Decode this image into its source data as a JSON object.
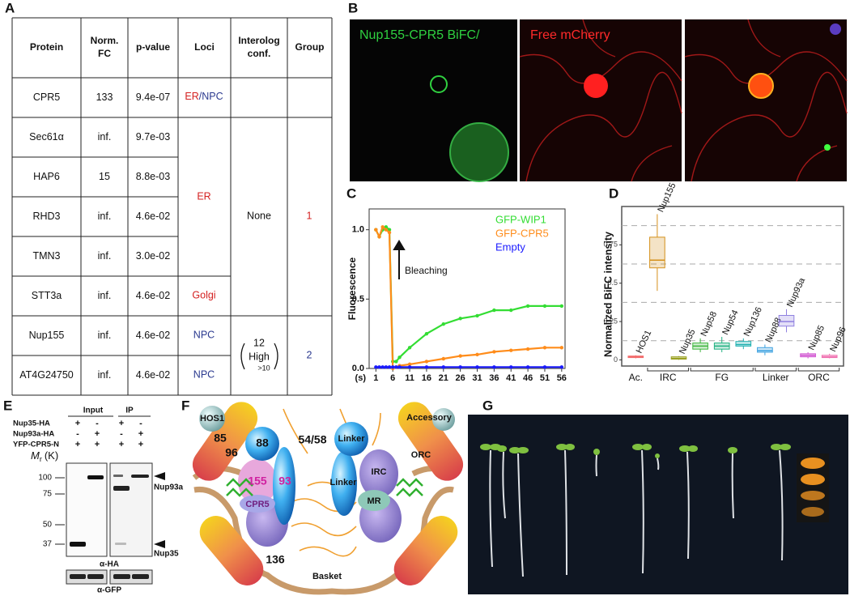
{
  "panel_labels": [
    "A",
    "B",
    "C",
    "D",
    "E",
    "F",
    "G"
  ],
  "table": {
    "header": [
      [
        "Protein"
      ],
      [
        "Norm.",
        "FC"
      ],
      [
        "p-value"
      ],
      [
        "Loci"
      ],
      [
        "Interolog",
        "conf."
      ],
      [
        "Group"
      ]
    ],
    "rows": [
      [
        "CPR5",
        "133",
        "9.4e-07"
      ],
      [
        "Sec61α",
        "inf.",
        "9.7e-03"
      ],
      [
        "HAP6",
        "15",
        "8.8e-03"
      ],
      [
        "RHD3",
        "inf.",
        "4.6e-02"
      ],
      [
        "TMN3",
        "inf.",
        "3.0e-02"
      ],
      [
        "STT3a",
        "inf.",
        "4.6e-02"
      ],
      [
        "Nup155",
        "inf.",
        "4.6e-02"
      ],
      [
        "AT4G24750",
        "inf.",
        "4.6e-02"
      ]
    ],
    "loci": {
      "cpr5": [
        "ER",
        "/NPC"
      ],
      "er": "ER",
      "golgi": "Golgi",
      "nup155": "NPC",
      "at4g24750": "NPC"
    },
    "interolog": {
      "group1": "None",
      "group2_count": "12",
      "group2_level": "High",
      "group2_threshold": ">10"
    },
    "group": [
      "1",
      "2"
    ]
  },
  "microscopy": {
    "label_bifc": "Nup155-CPR5 BiFC/",
    "label_mcherry": "Free mCherry"
  },
  "chart_data": [
    {
      "type": "line",
      "ylabel": "Fluorescence",
      "x_unit": "(s)",
      "annotation": "Bleaching",
      "x": [
        1,
        2,
        3,
        4,
        5,
        6,
        7,
        8,
        11,
        16,
        21,
        26,
        31,
        36,
        41,
        46,
        51,
        56
      ],
      "xlim": [
        -1,
        57
      ],
      "ylim": [
        0,
        1.15
      ],
      "xticks": [
        1,
        6,
        11,
        16,
        21,
        26,
        31,
        36,
        41,
        46,
        51,
        56
      ],
      "yticks": [
        {
          "value": 0,
          "label": "0.0"
        },
        {
          "value": 0.5,
          "label": "0.5"
        },
        {
          "value": 1,
          "label": "1.0"
        }
      ],
      "series": [
        {
          "name": "GFP-WIP1",
          "color": "#33dd33",
          "values": [
            1.0,
            0.95,
            1.0,
            1.02,
            1.0,
            0.05,
            0.05,
            0.08,
            0.15,
            0.25,
            0.32,
            0.36,
            0.38,
            0.42,
            0.42,
            0.45,
            0.45,
            0.45
          ]
        },
        {
          "name": "GFP-CPR5",
          "color": "#ff8c1a",
          "values": [
            1.0,
            0.95,
            1.02,
            1.0,
            0.98,
            0.0,
            0.01,
            0.02,
            0.03,
            0.05,
            0.07,
            0.09,
            0.1,
            0.12,
            0.13,
            0.14,
            0.15,
            0.15
          ]
        },
        {
          "name": "Empty",
          "color": "#1a1aff",
          "values": [
            0.01,
            0.01,
            0.01,
            0.01,
            0.01,
            0.01,
            0.01,
            0.01,
            0.01,
            0.01,
            0.01,
            0.01,
            0.01,
            0.01,
            0.01,
            0.01,
            0.01,
            0.01
          ]
        }
      ]
    },
    {
      "type": "box",
      "ylabel": "Normalized BiFC intensity",
      "categories": [
        "HOS1",
        "Nup155",
        "Nup35",
        "Nup58",
        "Nup54",
        "Nup136",
        "Nup88",
        "Nup93a",
        "Nup85",
        "Nup96"
      ],
      "colors": [
        "#f26b6b",
        "#d4901a",
        "#9aa020",
        "#3cb43c",
        "#20b080",
        "#20b0b0",
        "#3aa0e0",
        "#9080e0",
        "#d050d0",
        "#f070b0"
      ],
      "median": [
        0.02,
        0.65,
        0.01,
        0.09,
        0.09,
        0.1,
        0.06,
        0.25,
        0.03,
        0.02
      ],
      "q1": [
        0.015,
        0.6,
        0.005,
        0.07,
        0.07,
        0.09,
        0.05,
        0.22,
        0.02,
        0.015
      ],
      "q3": [
        0.025,
        0.8,
        0.02,
        0.11,
        0.11,
        0.12,
        0.08,
        0.29,
        0.04,
        0.03
      ],
      "low": [
        0.01,
        0.45,
        0,
        0.05,
        0.05,
        0.07,
        0.03,
        0.18,
        0.01,
        0.01
      ],
      "high": [
        0.03,
        0.95,
        0.025,
        0.14,
        0.15,
        0.14,
        0.1,
        0.33,
        0.05,
        0.04
      ],
      "ylim": [
        -0.04,
        1.0
      ],
      "yticks": [
        0,
        0.25,
        0.5,
        0.75
      ],
      "grid_lines": [
        0.125,
        0.375,
        0.625,
        0.875
      ],
      "groups": [
        "Ac.",
        "IRC",
        "FG",
        "Linker",
        "ORC"
      ]
    }
  ],
  "blot": {
    "input": "Input",
    "ip": "IP",
    "rows": [
      "Nup35-HA",
      "Nup93a-HA",
      "YFP-CPR5-N"
    ],
    "signs": [
      [
        "+",
        "-",
        "+",
        "-"
      ],
      [
        "-",
        "+",
        "-",
        "+"
      ],
      [
        "+",
        "+",
        "+",
        "+"
      ]
    ],
    "mr": "M",
    "mr_sub": "r",
    "mr_unit": "(K)",
    "ladder": [
      "100",
      "75",
      "50",
      "37"
    ],
    "nup93a": "Nup93a",
    "nup35": "Nup35",
    "anti_ha": "α-HA",
    "anti_gfp": "α-GFP"
  },
  "diagram": {
    "hos1": "HOS1",
    "n85": "85",
    "n96": "96",
    "n88": "88",
    "n5458": "54/58",
    "linker_top": "Linker",
    "accessory": "Accessory",
    "orc": "ORC",
    "irc": "IRC",
    "n155": "155",
    "n93": "93",
    "cpr5": "CPR5",
    "linker_mid": "Linker",
    "mr": "MR",
    "n136": "136",
    "basket": "Basket"
  }
}
